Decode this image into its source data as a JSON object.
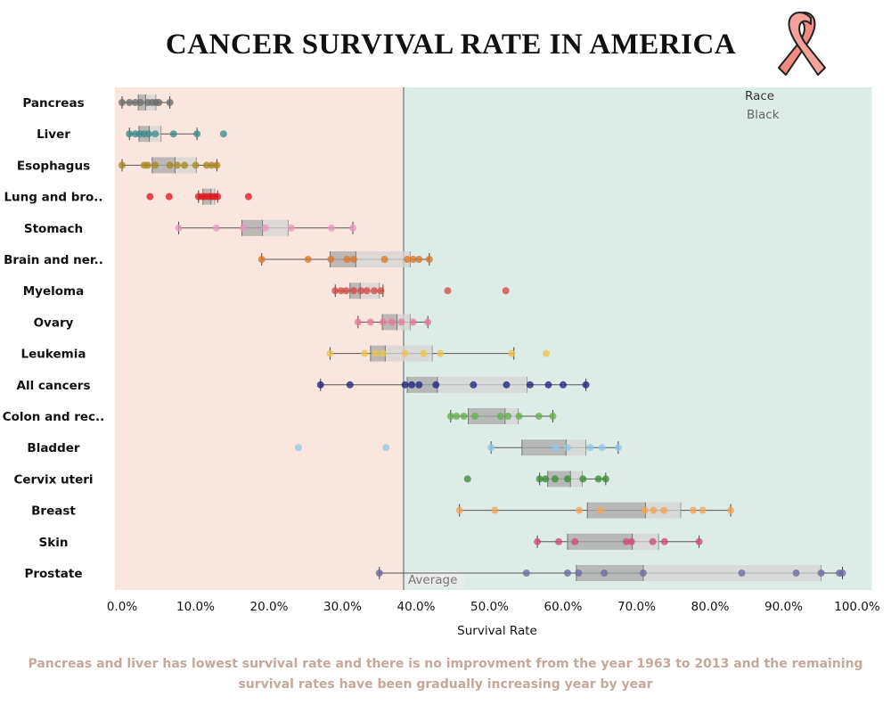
{
  "title": "CANCER SURVIVAL RATE IN AMERICA",
  "caption": "Pancreas and liver has lowest survival rate and there is no improvment from the year 1963 to 2013 and the remaining survival rates have been gradually  increasing year by year",
  "legend": {
    "title": "Race",
    "item": "Black",
    "placement": "top-right"
  },
  "ribbon_icon": "awareness-ribbon-icon",
  "chart_data": {
    "type": "box-plot",
    "xlabel": "Survival Rate",
    "xlim": [
      -1,
      102
    ],
    "x_ticks": [
      0,
      10,
      20,
      30,
      40,
      50,
      60,
      70,
      80,
      90,
      100
    ],
    "x_tick_labels": [
      "0.0%",
      "10.0%",
      "20.0%",
      "30.0%",
      "40.0%",
      "50.0%",
      "60.0%",
      "70.0%",
      "80.0%",
      "90.0%",
      "100.0%"
    ],
    "reference_line": {
      "label": "Average",
      "value": 38.3
    },
    "bands": [
      {
        "from": -1,
        "to": 38.3,
        "color": "#f9e6df"
      },
      {
        "from": 38.3,
        "to": 102,
        "color": "#deece8"
      }
    ],
    "categories": [
      {
        "name": "Pancreas",
        "color": "#6b6b6b",
        "whisker": [
          0,
          6.5
        ],
        "q1": 2.2,
        "median": 3.2,
        "q3": 4.6,
        "points": [
          0,
          1,
          1.8,
          2.5,
          3.5,
          4.1,
          4.6,
          5.0,
          6.5
        ]
      },
      {
        "name": "Liver",
        "color": "#3a8c8a",
        "whisker": [
          1,
          10.2
        ],
        "q1": 2.3,
        "median": 3.7,
        "q3": 5.3,
        "points": [
          1,
          1.8,
          2.4,
          3.0,
          3.6,
          4.5,
          7.0,
          10.2,
          13.8
        ]
      },
      {
        "name": "Esophagus",
        "color": "#a48820",
        "whisker": [
          0,
          12.9
        ],
        "q1": 4.1,
        "median": 7.2,
        "q3": 10.1,
        "points": [
          0,
          3.0,
          3.5,
          4.5,
          6.5,
          7.5,
          8.5,
          10.0,
          11.5,
          12.2,
          12.9
        ]
      },
      {
        "name": "Lung and bro..",
        "color": "#e0181f",
        "whisker": [
          10.4,
          13.0
        ],
        "q1": 11.0,
        "median": 12.1,
        "q3": 12.6,
        "points": [
          3.8,
          6.4,
          10.4,
          10.9,
          11.3,
          11.8,
          12.2,
          12.6,
          13.0,
          17.2
        ]
      },
      {
        "name": "Stomach",
        "color": "#e69ac2",
        "whisker": [
          7.7,
          31.4
        ],
        "q1": 16.3,
        "median": 19.1,
        "q3": 22.6,
        "points": [
          7.7,
          12.8,
          16.5,
          19.5,
          23.0,
          28.5,
          31.4
        ]
      },
      {
        "name": "Brain and ner..",
        "color": "#d9792a",
        "whisker": [
          19.0,
          41.8
        ],
        "q1": 28.3,
        "median": 31.8,
        "q3": 39.2,
        "points": [
          19.0,
          25.3,
          28.4,
          30.6,
          31.5,
          35.7,
          38.8,
          39.6,
          40.4,
          41.8
        ]
      },
      {
        "name": "Myeloma",
        "color": "#d24a4a",
        "whisker": [
          29.0,
          35.5
        ],
        "q1": 31.0,
        "median": 32.4,
        "q3": 35.0,
        "points": [
          29.0,
          29.8,
          30.5,
          31.5,
          32.5,
          33.3,
          34.3,
          35.2,
          44.3,
          52.2
        ]
      },
      {
        "name": "Ovary",
        "color": "#e8799a",
        "whisker": [
          32.1,
          41.6
        ],
        "q1": 35.4,
        "median": 37.4,
        "q3": 39.2,
        "points": [
          32.1,
          33.8,
          35.5,
          36.7,
          38.0,
          39.6,
          41.6
        ]
      },
      {
        "name": "Leukemia",
        "color": "#edc449",
        "whisker": [
          28.3,
          53.3
        ],
        "q1": 33.8,
        "median": 35.8,
        "q3": 42.2,
        "points": [
          28.3,
          33.0,
          34.5,
          35.5,
          38.5,
          41.0,
          43.3,
          53.0,
          57.7
        ]
      },
      {
        "name": "All cancers",
        "color": "#1f2580",
        "whisker": [
          27.0,
          63.1
        ],
        "q1": 38.8,
        "median": 42.9,
        "q3": 55.1,
        "points": [
          27.0,
          31.0,
          38.5,
          39.4,
          40.4,
          42.7,
          47.8,
          52.3,
          55.5,
          58.0,
          60.0,
          63.1
        ]
      },
      {
        "name": "Colon and rec..",
        "color": "#66b04c",
        "whisker": [
          44.7,
          58.6
        ],
        "q1": 47.1,
        "median": 52.1,
        "q3": 53.9,
        "points": [
          44.7,
          45.5,
          46.5,
          48.0,
          51.5,
          52.5,
          54.0,
          56.7,
          58.6
        ]
      },
      {
        "name": "Bladder",
        "color": "#93c7e8",
        "whisker": [
          50.2,
          67.5
        ],
        "q1": 54.4,
        "median": 60.4,
        "q3": 63.1,
        "points": [
          24.0,
          35.9,
          50.2,
          59.0,
          60.6,
          63.7,
          65.3,
          67.5
        ]
      },
      {
        "name": "Cervix uteri",
        "color": "#3f8a3a",
        "whisker": [
          56.8,
          65.8
        ],
        "q1": 57.9,
        "median": 61.0,
        "q3": 62.6,
        "points": [
          47.0,
          56.8,
          57.6,
          58.9,
          60.6,
          62.7,
          64.8,
          65.8
        ]
      },
      {
        "name": "Breast",
        "color": "#f2a458",
        "whisker": [
          45.9,
          82.8
        ],
        "q1": 63.3,
        "median": 71.2,
        "q3": 76.0,
        "points": [
          45.9,
          50.7,
          62.2,
          65.1,
          71.1,
          72.3,
          73.7,
          77.7,
          79.0,
          82.8
        ]
      },
      {
        "name": "Skin",
        "color": "#cf4a7a",
        "whisker": [
          56.5,
          78.5
        ],
        "q1": 60.6,
        "median": 69.4,
        "q3": 73.0,
        "points": [
          56.5,
          59.4,
          61.6,
          68.6,
          69.3,
          72.2,
          73.8,
          78.5
        ]
      },
      {
        "name": "Prostate",
        "color": "#6b6aa0",
        "whisker": [
          35.0,
          98.0
        ],
        "q1": 61.8,
        "median": 70.9,
        "q3": 95.1,
        "points": [
          35.0,
          55.0,
          60.6,
          62.1,
          65.6,
          70.9,
          84.3,
          91.7,
          95.1,
          97.6,
          98.0
        ]
      }
    ]
  }
}
